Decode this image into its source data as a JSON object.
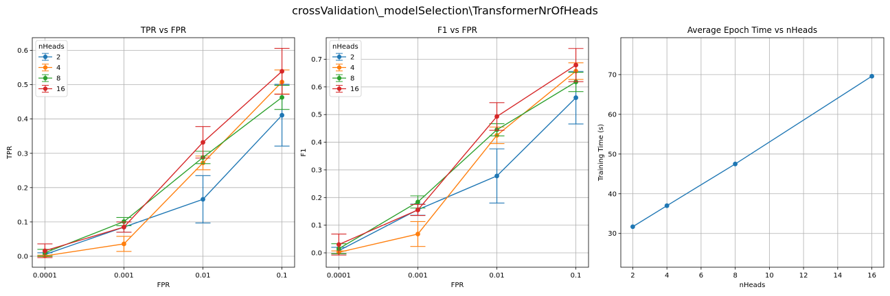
{
  "title": "crossValidation\\_modelSelection\\TransformerNrOfHeads",
  "colors": {
    "2": "#1f77b4",
    "4": "#ff7f0e",
    "8": "#2ca02c",
    "16": "#d62728",
    "grid": "#b0b0b0"
  },
  "chart_data": [
    {
      "type": "line",
      "title": "TPR vs FPR",
      "xlabel": "FPR",
      "ylabel": "TPR",
      "x_scale": "log",
      "categories": [
        "0.0001",
        "0.001",
        "0.01",
        "0.1"
      ],
      "ylim": [
        -0.032,
        0.637
      ],
      "yticks": [
        0.0,
        0.1,
        0.2,
        0.3,
        0.4,
        0.5,
        0.6
      ],
      "ytick_labels": [
        "0.0",
        "0.1",
        "0.2",
        "0.3",
        "0.4",
        "0.5",
        "0.6"
      ],
      "grid": true,
      "legend": {
        "title": "nHeads",
        "placement": "top-left"
      },
      "series": [
        {
          "name": "2",
          "color": "#1f77b4",
          "values": [
            0.005,
            0.085,
            0.166,
            0.411
          ],
          "errors": [
            0.005,
            0.015,
            0.069,
            0.09
          ]
        },
        {
          "name": "4",
          "color": "#ff7f0e",
          "values": [
            0.001,
            0.036,
            0.272,
            0.508
          ],
          "errors": [
            0.002,
            0.022,
            0.02,
            0.035
          ]
        },
        {
          "name": "8",
          "color": "#2ca02c",
          "values": [
            0.01,
            0.101,
            0.288,
            0.463
          ],
          "errors": [
            0.01,
            0.012,
            0.018,
            0.035
          ]
        },
        {
          "name": "16",
          "color": "#d62728",
          "values": [
            0.016,
            0.085,
            0.332,
            0.539
          ],
          "errors": [
            0.02,
            0.015,
            0.046,
            0.067
          ]
        }
      ]
    },
    {
      "type": "line",
      "title": "F1 vs FPR",
      "xlabel": "FPR",
      "ylabel": "F1",
      "x_scale": "log",
      "categories": [
        "0.0001",
        "0.001",
        "0.01",
        "0.1"
      ],
      "ylim": [
        -0.052,
        0.778
      ],
      "yticks": [
        0.0,
        0.1,
        0.2,
        0.3,
        0.4,
        0.5,
        0.6,
        0.7
      ],
      "ytick_labels": [
        "0.0",
        "0.1",
        "0.2",
        "0.3",
        "0.4",
        "0.5",
        "0.6",
        "0.7"
      ],
      "grid": true,
      "legend": {
        "title": "nHeads",
        "placement": "top-left"
      },
      "series": [
        {
          "name": "2",
          "color": "#1f77b4",
          "values": [
            0.008,
            0.156,
            0.278,
            0.561
          ],
          "errors": [
            0.012,
            0.02,
            0.098,
            0.095
          ]
        },
        {
          "name": "4",
          "color": "#ff7f0e",
          "values": [
            0.002,
            0.068,
            0.425,
            0.657
          ],
          "errors": [
            0.005,
            0.045,
            0.03,
            0.03
          ]
        },
        {
          "name": "8",
          "color": "#2ca02c",
          "values": [
            0.015,
            0.184,
            0.445,
            0.618
          ],
          "errors": [
            0.018,
            0.022,
            0.022,
            0.035
          ]
        },
        {
          "name": "16",
          "color": "#d62728",
          "values": [
            0.03,
            0.155,
            0.493,
            0.679
          ],
          "errors": [
            0.038,
            0.02,
            0.05,
            0.06
          ]
        }
      ]
    },
    {
      "type": "line",
      "title": "Average Epoch Time vs nHeads",
      "xlabel": "nHeads",
      "ylabel": "Training Time (s)",
      "xlim": [
        1.3,
        16.7
      ],
      "xticks": [
        2,
        4,
        6,
        8,
        10,
        12,
        14,
        16
      ],
      "xtick_labels": [
        "2",
        "4",
        "6",
        "8",
        "10",
        "12",
        "14",
        "16"
      ],
      "ylim": [
        21.5,
        79.3
      ],
      "yticks": [
        30,
        40,
        50,
        60,
        70
      ],
      "ytick_labels": [
        "30",
        "40",
        "50",
        "60",
        "70"
      ],
      "grid": true,
      "series": [
        {
          "color": "#1f77b4",
          "x": [
            2,
            4,
            8,
            16
          ],
          "values": [
            31.7,
            37.0,
            47.5,
            69.6
          ]
        }
      ]
    }
  ]
}
